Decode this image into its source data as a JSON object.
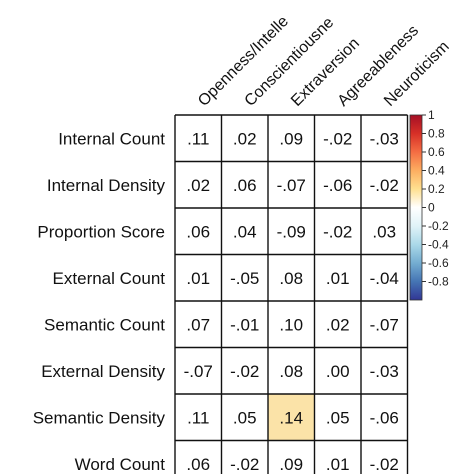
{
  "chart_data": {
    "type": "heatmap",
    "columns": [
      "Openness/Intellect",
      "Conscientiousness",
      "Extraversion",
      "Agreeableness",
      "Neuroticism"
    ],
    "column_display": [
      "Openness/Intelle",
      "Conscientiousne",
      "Extraversion",
      "Agreeableness",
      "Neuroticism"
    ],
    "rows": [
      "Internal Count",
      "Internal Density",
      "Proportion Score",
      "External Count",
      "Semantic Count",
      "External Density",
      "Semantic Density",
      "Word Count"
    ],
    "values": [
      [
        0.11,
        0.02,
        0.09,
        -0.02,
        -0.03
      ],
      [
        0.02,
        0.06,
        -0.07,
        -0.06,
        -0.02
      ],
      [
        0.06,
        0.04,
        -0.09,
        -0.02,
        0.03
      ],
      [
        0.01,
        -0.05,
        0.08,
        0.01,
        -0.04
      ],
      [
        0.07,
        -0.01,
        0.1,
        0.02,
        -0.07
      ],
      [
        -0.07,
        -0.02,
        0.08,
        0.0,
        -0.03
      ],
      [
        0.11,
        0.05,
        0.14,
        0.05,
        -0.06
      ],
      [
        0.06,
        -0.02,
        0.09,
        0.01,
        -0.02
      ]
    ],
    "labels": [
      [
        ".11",
        ".02",
        ".09",
        "-.02",
        "-.03"
      ],
      [
        ".02",
        ".06",
        "-.07",
        "-.06",
        "-.02"
      ],
      [
        ".06",
        ".04",
        "-.09",
        "-.02",
        ".03"
      ],
      [
        ".01",
        "-.05",
        ".08",
        ".01",
        "-.04"
      ],
      [
        ".07",
        "-.01",
        ".10",
        ".02",
        "-.07"
      ],
      [
        "-.07",
        "-.02",
        ".08",
        ".00",
        "-.03"
      ],
      [
        ".11",
        ".05",
        ".14",
        ".05",
        "-.06"
      ],
      [
        ".06",
        "-.02",
        ".09",
        ".01",
        "-.02"
      ]
    ],
    "highlighted_cells": [
      [
        6,
        2
      ]
    ],
    "highlight_color": "#fbe3a8",
    "colorbar": {
      "range": [
        -1,
        1
      ],
      "ticks": [
        1,
        0.8,
        0.6,
        0.4,
        0.2,
        0,
        -0.2,
        -0.4,
        -0.6,
        -0.8
      ],
      "tick_labels": [
        "1",
        "0.8",
        "0.6",
        "0.4",
        "0.2",
        "0",
        "-0.2",
        "-0.4",
        "-0.6",
        "-0.8"
      ],
      "colors": [
        "#a50f26",
        "#d73027",
        "#f46d43",
        "#fdae61",
        "#fee090",
        "#ffffff",
        "#e0f3f8",
        "#abd9e9",
        "#74add1",
        "#4575b4",
        "#313695"
      ]
    },
    "title": "",
    "xlabel": "",
    "ylabel": ""
  }
}
